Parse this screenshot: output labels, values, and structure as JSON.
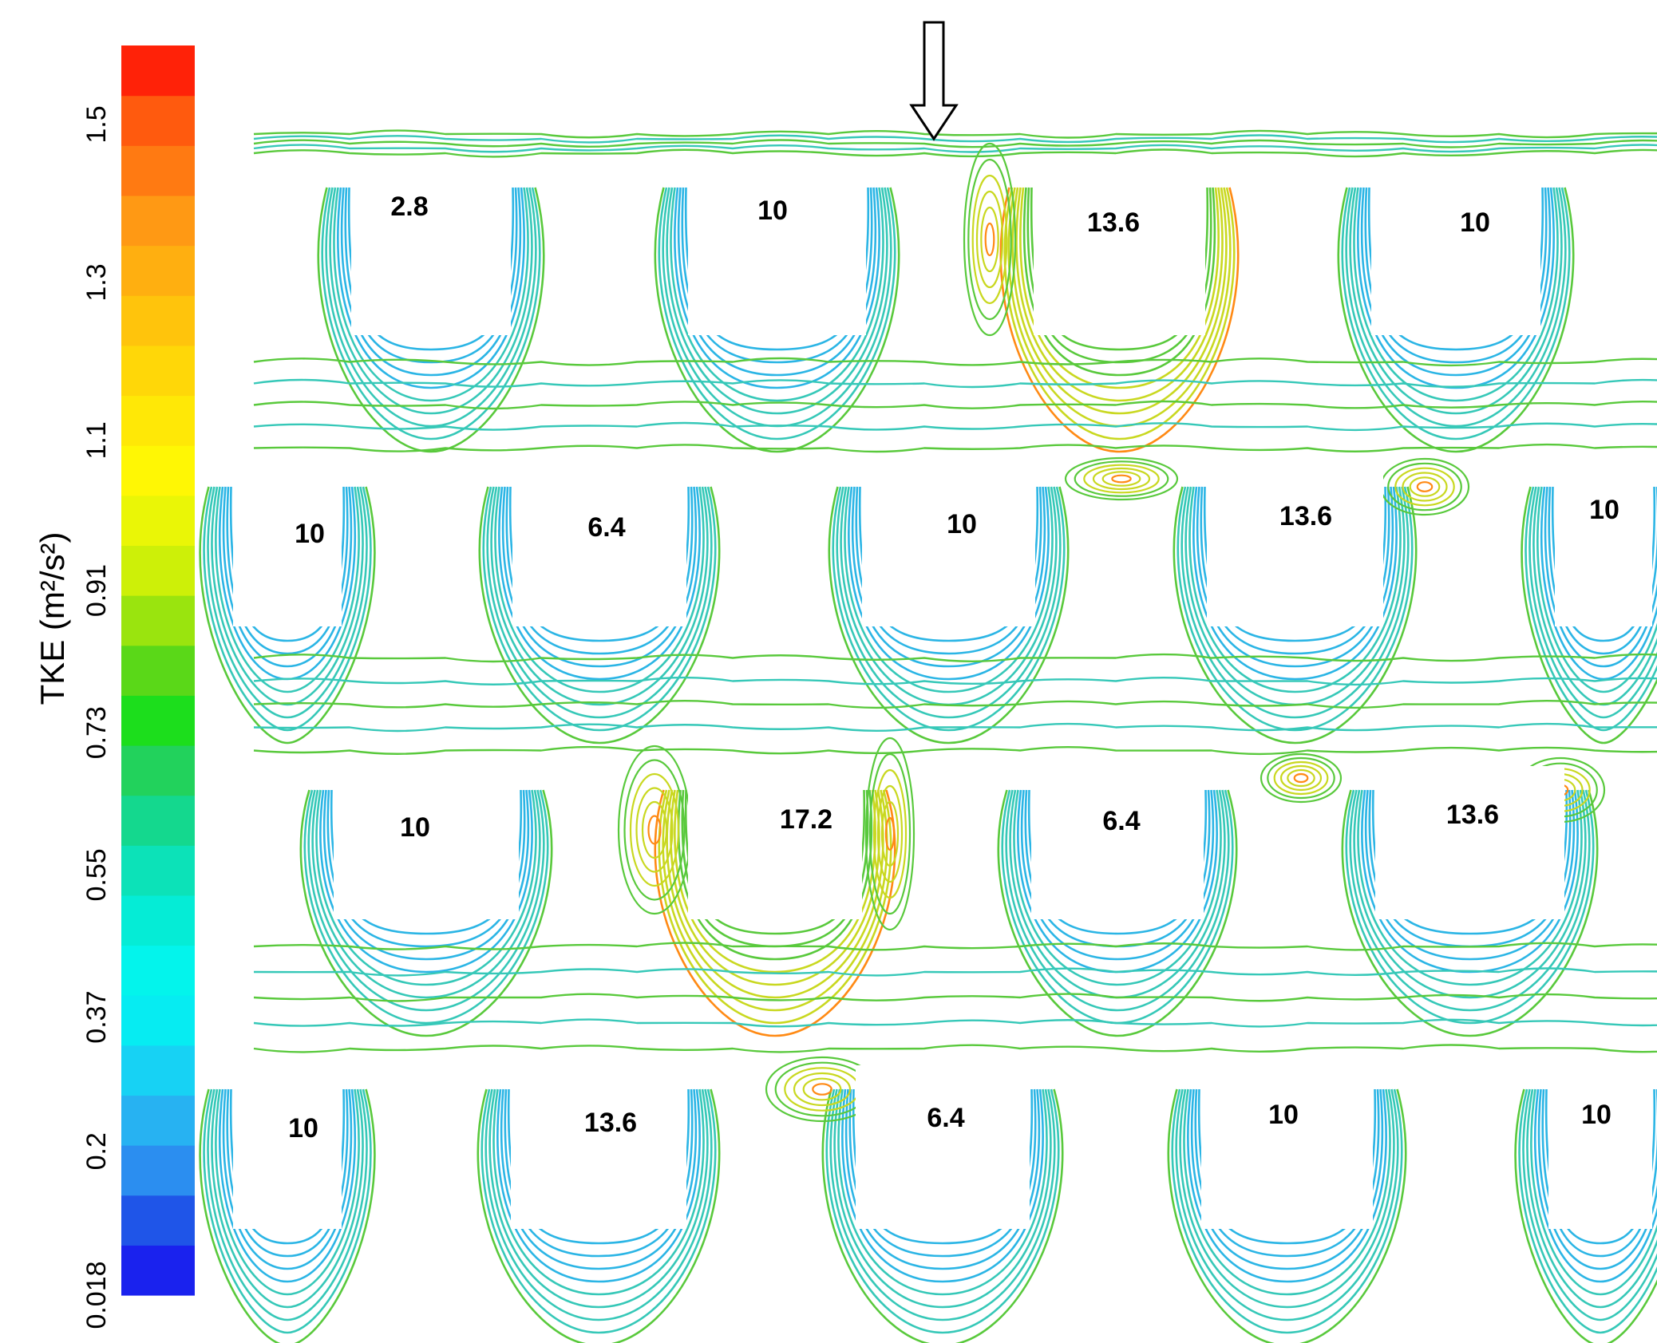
{
  "chart_data": {
    "type": "heatmap",
    "title": "",
    "colorbar": {
      "label": "TKE (m²/s²)",
      "min": 0.018,
      "max": 1.6,
      "tick_labels": [
        "0.018",
        "0.2",
        "0.37",
        "0.55",
        "0.73",
        "0.91",
        "1.1",
        "1.3",
        "1.5"
      ],
      "ticks": [
        0.018,
        0.2,
        0.37,
        0.55,
        0.73,
        0.91,
        1.1,
        1.3,
        1.5
      ],
      "colors": [
        "#1a22ee",
        "#1f55e8",
        "#2b8ef0",
        "#27b2f2",
        "#17d2f4",
        "#06ecf2",
        "#03f4ec",
        "#05ecd6",
        "#0ce2b8",
        "#14d88e",
        "#22d25c",
        "#1cde1c",
        "#5ad818",
        "#9ae40e",
        "#cdf008",
        "#eaf606",
        "#fff704",
        "#ffe806",
        "#ffd708",
        "#ffc40c",
        "#ffaf10",
        "#ff9914",
        "#ff7a12",
        "#ff5a0e",
        "#ff2208"
      ]
    },
    "flow_arrow": "down",
    "building_rows": [
      {
        "labels": [
          "2.8",
          "10",
          "13.6",
          "10"
        ]
      },
      {
        "labels": [
          "10",
          "6.4",
          "10",
          "13.6",
          "10"
        ]
      },
      {
        "labels": [
          "10",
          "17.2",
          "6.4",
          "13.6"
        ]
      },
      {
        "labels": [
          "10",
          "13.6",
          "6.4",
          "10",
          "10"
        ]
      }
    ],
    "contour_colors": {
      "cool": "#2bb5e5",
      "mid": "#36c8b8",
      "warm": "#59c93c",
      "hot": "#c9d820",
      "peak": "#ff8a14"
    }
  }
}
